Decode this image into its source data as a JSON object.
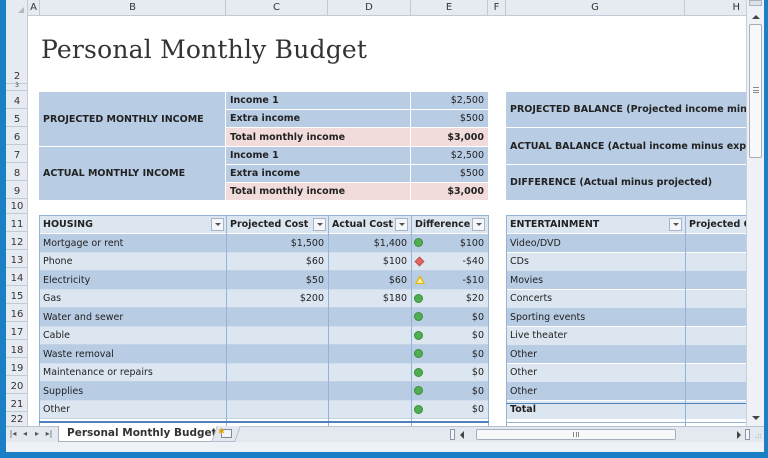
{
  "window": {
    "column_headers": [
      "A",
      "B",
      "C",
      "D",
      "E",
      "F",
      "G",
      "H"
    ],
    "row_headers": [
      "2",
      "3",
      "4",
      "5",
      "6",
      "7",
      "8",
      "9",
      "10",
      "11",
      "12",
      "13",
      "14",
      "15",
      "16",
      "17",
      "18",
      "19",
      "20",
      "21",
      "22"
    ]
  },
  "title": "Personal Monthly Budget",
  "income": {
    "projected": {
      "label": "PROJECTED MONTHLY INCOME",
      "rows": [
        {
          "label": "Income 1",
          "value": "$2,500"
        },
        {
          "label": "Extra income",
          "value": "$500"
        },
        {
          "label": "Total monthly income",
          "value": "$3,000"
        }
      ]
    },
    "actual": {
      "label": "ACTUAL MONTHLY INCOME",
      "rows": [
        {
          "label": "Income 1",
          "value": "$2,500"
        },
        {
          "label": "Extra income",
          "value": "$500"
        },
        {
          "label": "Total monthly income",
          "value": "$3,000"
        }
      ]
    }
  },
  "balance": {
    "projected": "PROJECTED BALANCE (Projected income minus exp",
    "actual": "ACTUAL BALANCE (Actual income minus expenses)",
    "difference": "DIFFERENCE (Actual minus projected)"
  },
  "housing": {
    "headers": [
      "HOUSING",
      "Projected Cost",
      "Actual Cost",
      "Difference"
    ],
    "rows": [
      {
        "item": "Mortgage or rent",
        "projected": "$1,500",
        "actual": "$1,400",
        "indicator": "green-circle",
        "diff": "$100"
      },
      {
        "item": "Phone",
        "projected": "$60",
        "actual": "$100",
        "indicator": "red-diamond",
        "diff": "-$40"
      },
      {
        "item": "Electricity",
        "projected": "$50",
        "actual": "$60",
        "indicator": "yellow-triangle",
        "diff": "-$10"
      },
      {
        "item": "Gas",
        "projected": "$200",
        "actual": "$180",
        "indicator": "green-circle",
        "diff": "$20"
      },
      {
        "item": "Water and sewer",
        "projected": "",
        "actual": "",
        "indicator": "green-circle",
        "diff": "$0"
      },
      {
        "item": "Cable",
        "projected": "",
        "actual": "",
        "indicator": "green-circle",
        "diff": "$0"
      },
      {
        "item": "Waste removal",
        "projected": "",
        "actual": "",
        "indicator": "green-circle",
        "diff": "$0"
      },
      {
        "item": "Maintenance or repairs",
        "projected": "",
        "actual": "",
        "indicator": "green-circle",
        "diff": "$0"
      },
      {
        "item": "Supplies",
        "projected": "",
        "actual": "",
        "indicator": "green-circle",
        "diff": "$0"
      },
      {
        "item": "Other",
        "projected": "",
        "actual": "",
        "indicator": "green-circle",
        "diff": "$0"
      }
    ]
  },
  "entertainment": {
    "headers": [
      "ENTERTAINMENT",
      "Projected Cos"
    ],
    "rows": [
      "Video/DVD",
      "CDs",
      "Movies",
      "Concerts",
      "Sporting events",
      "Live theater",
      "Other",
      "Other",
      "Other"
    ],
    "total_label": "Total"
  },
  "sheet_tabs": {
    "active": "Personal Monthly Budget",
    "nav": [
      "|◂",
      "◂",
      "▸",
      "▸|"
    ]
  },
  "colors": {
    "blue": "#b8cce4",
    "light_blue": "#dce6f1",
    "pink": "#f2dcdb",
    "frame": "#1a7fc4",
    "good": "#4fae4f",
    "bad": "#e06666",
    "warn": "#e8b400"
  }
}
